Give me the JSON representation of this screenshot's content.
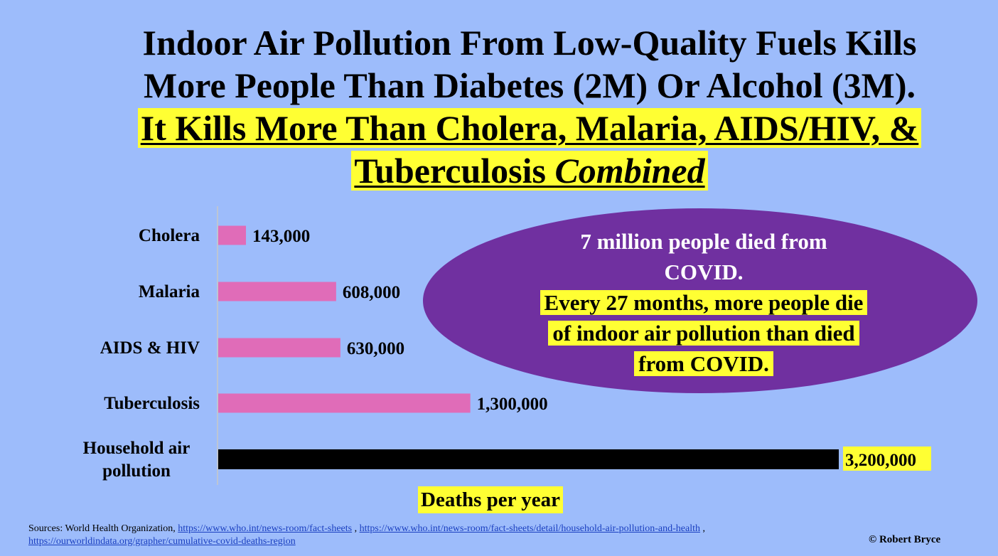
{
  "title": {
    "line1": "Indoor Air Pollution From Low-Quality Fuels Kills",
    "line2": "More People Than Diabetes (2M) Or Alcohol (3M).",
    "line3": "It Kills More Than Cholera, Malaria, AIDS/HIV, &",
    "line4_a": "Tuberculosis ",
    "line4_b": "Combined"
  },
  "callout": {
    "line1": "7 million people died from",
    "line2": "COVID.",
    "hl1": "Every 27 months, more people die",
    "hl2": "of indoor air pollution than died",
    "hl3": "from COVID."
  },
  "colors": {
    "background": "#9dbcfb",
    "bar": "#e06cb8",
    "highlight_bar": "#000000",
    "callout": "#7030a0",
    "highlight": "#ffff33"
  },
  "chart_data": {
    "type": "bar",
    "orientation": "horizontal",
    "categories": [
      "Cholera",
      "Malaria",
      "AIDS & HIV",
      "Tuberculosis",
      "Household air pollution"
    ],
    "values": [
      143000,
      608000,
      630000,
      1300000,
      3200000
    ],
    "value_labels": [
      "143,000",
      "608,000",
      "630,000",
      "1,300,000",
      "3,200,000"
    ],
    "xlabel": "Deaths per year",
    "xlim": [
      0,
      3200000
    ],
    "grid": false
  },
  "sources": {
    "prefix": "Sources: World Health Organization, ",
    "link1": "https://www.who.int/news-room/fact-sheets",
    "sep": " ,  ",
    "link2": "https://www.who.int/news-room/fact-sheets/detail/household-air-pollution-and-health",
    "suffix": " ,",
    "link3": "https://ourworldindata.org/grapher/cumulative-covid-deaths-region"
  },
  "copyright": "© Robert Bryce"
}
